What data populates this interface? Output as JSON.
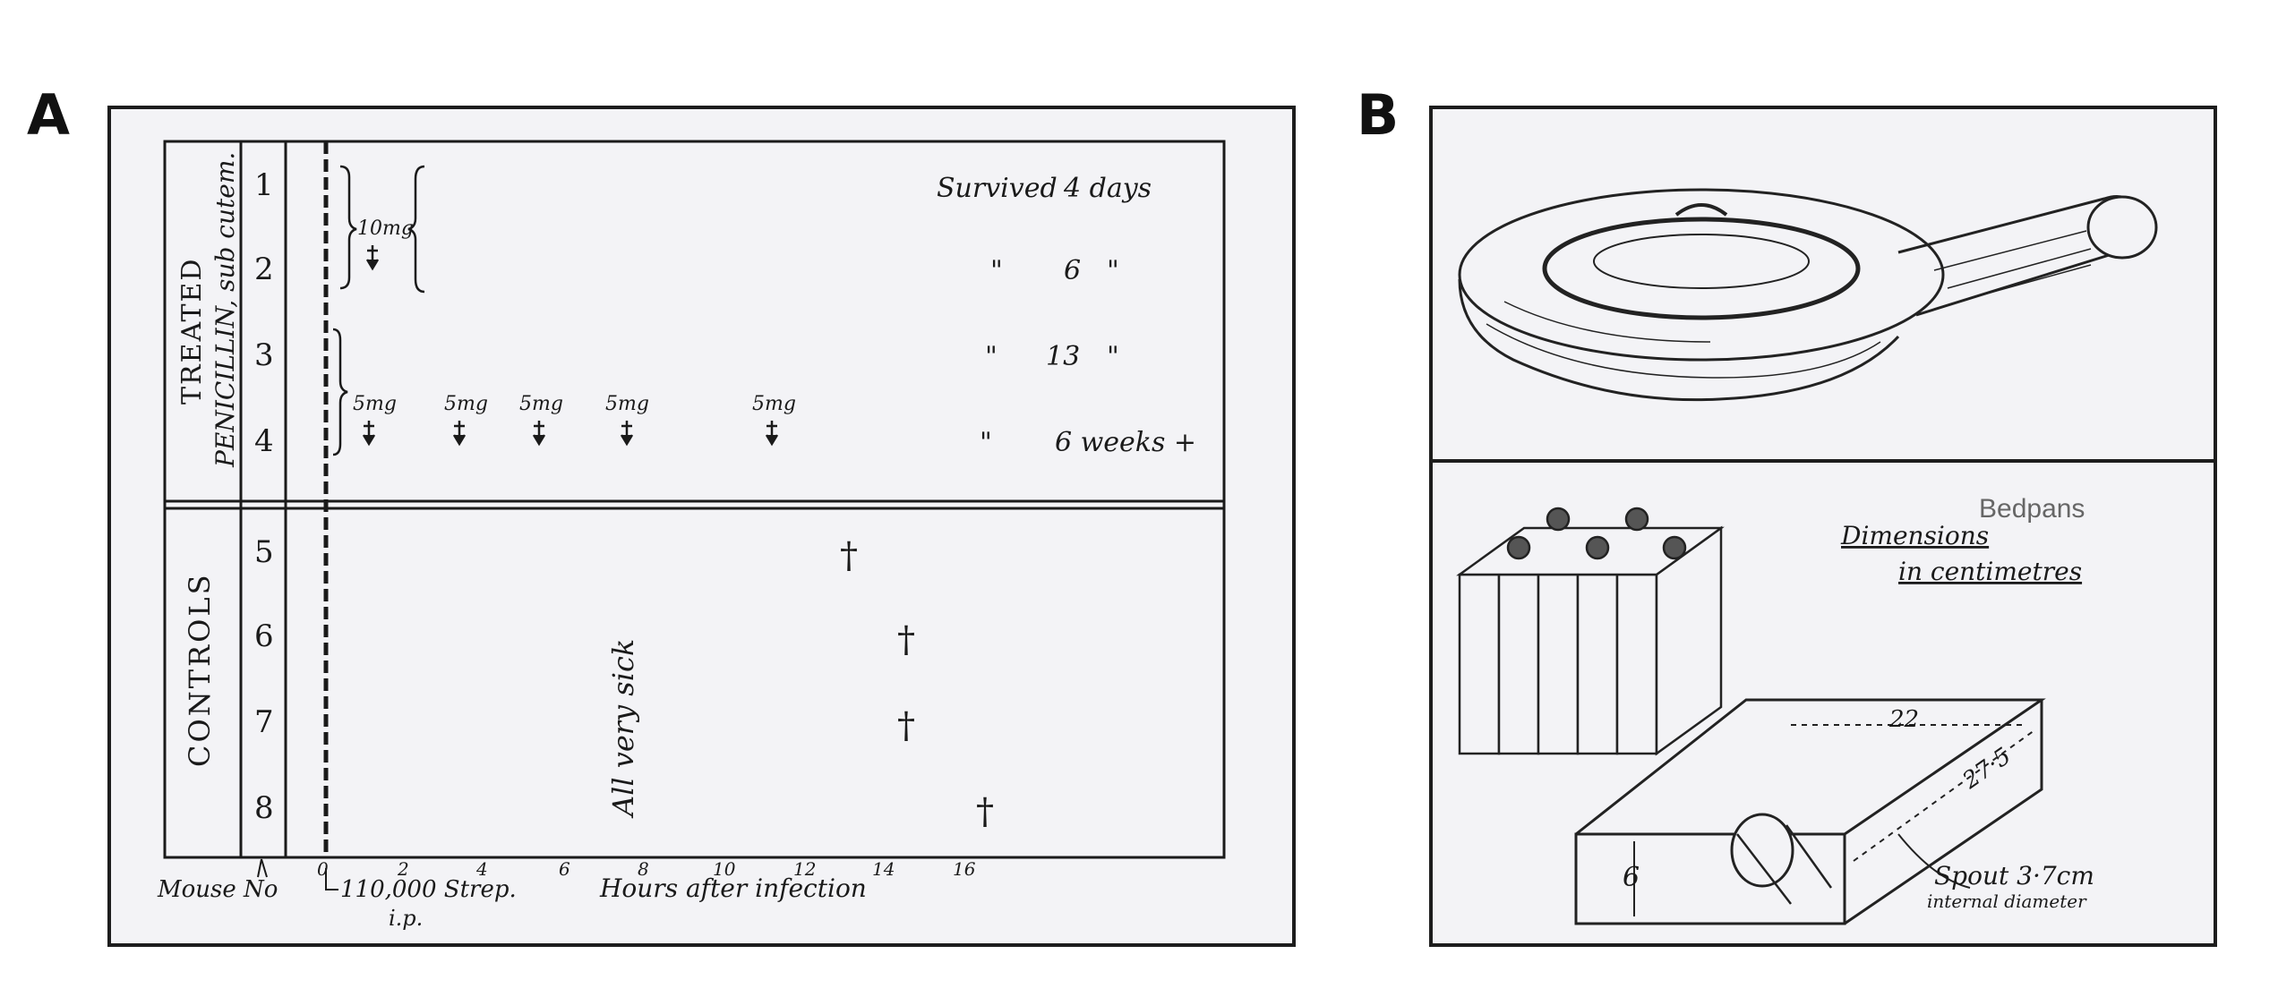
{
  "panel_a": {
    "letter": "A",
    "group_treated": "TREATED",
    "group_penicillin": "PENICILLIN, sub cutem.",
    "group_controls": "CONTROLS",
    "mouse_numbers": [
      "1",
      "2",
      "3",
      "4",
      "5",
      "6",
      "7",
      "8"
    ],
    "dose_10": "10mg",
    "dose_5": "5mg",
    "survived_label": "Survived",
    "outcomes": [
      {
        "ditto": "",
        "value": "4 days",
        "tail": ""
      },
      {
        "ditto": "\"",
        "value": "6",
        "tail": "\""
      },
      {
        "ditto": "\"",
        "value": "13",
        "tail": "\""
      },
      {
        "ditto": "\"",
        "value": "6 weeks +",
        "tail": ""
      }
    ],
    "all_very_sick": "All very sick",
    "x_ticks": [
      "2",
      "4",
      "6",
      "8",
      "10",
      "12",
      "14",
      "16"
    ],
    "x_origin_tick": "0",
    "mouse_no_label": "Mouse No",
    "strep_label": "110,000 Strep.",
    "ip_label": "i.p.",
    "x_axis_label": "Hours after infection",
    "death_mark": "†"
  },
  "panel_b": {
    "letter": "B",
    "dimensions_title_1": "Dimensions",
    "dimensions_title_2": "in centimetres",
    "dim_width": "22",
    "dim_length": "27·5",
    "dim_height": "6",
    "spout_label": "Spout 3·7cm",
    "spout_sub": "internal diameter",
    "caption": "Bedpans"
  }
}
